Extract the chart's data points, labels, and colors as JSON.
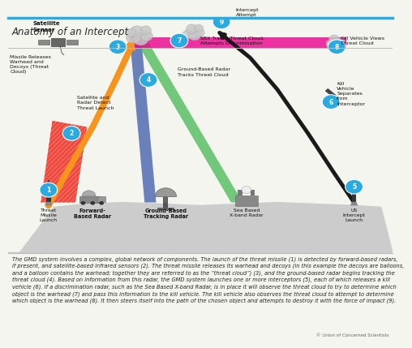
{
  "title": "Anatomy of an Intercept",
  "title_color": "#2a2a2a",
  "title_fontsize": 8.5,
  "bg_color": "#f5f5f0",
  "diagram_bg": "#f8f8f4",
  "body_text_1": "The GMD system involves a complex, global network of components. The launch of the threat missile (1) is detected by forward-based radars,",
  "body_text_2": "if present, and satellite-based infrared sensors (2). The threat missile releases its warhead and decoys (in this example the decoys are balloons,",
  "body_text_3": "and a balloon contains the warhead; together they are referred to as the “threat cloud”) (3), and the ground-based radar begins tracking the",
  "body_text_4": "threat cloud (4). Based on information from this radar, the GMD system launches one or more interceptors (5), each of which releases a kill",
  "body_text_5": "vehicle (6). If a discrimination radar, such as the Sea Based X-band Radar, is in place it will observe the threat cloud to try to determine which",
  "body_text_6": "object is the warhead (7) and pass this information to the kill vehicle. The kill vehicle also observes the threat cloud to attempt to determine",
  "body_text_7": "which object is the warhead (8). It then steers itself into the path of the chosen object and attempts to destroy it with the force of impact (9).",
  "body_fontsize": 4.8,
  "credit": "© Union of Concerned Scientists",
  "top_line_color": "#29abe2",
  "ground_color": "#cccccc",
  "sky_color": "#f8f8f4",
  "step_color": "#29abe2",
  "step_text_color": "#ffffff",
  "threat_color": "#f7941d",
  "red_beam_color": "#ee3124",
  "blue_beam_color": "#2e4fa3",
  "green_beam_color": "#39b54a",
  "pink_beam_color": "#ec008c",
  "intercept_color": "#231f20",
  "dashed_color": "#999999",
  "label_fontsize": 4.8,
  "bold_label_fontsize": 5.0
}
